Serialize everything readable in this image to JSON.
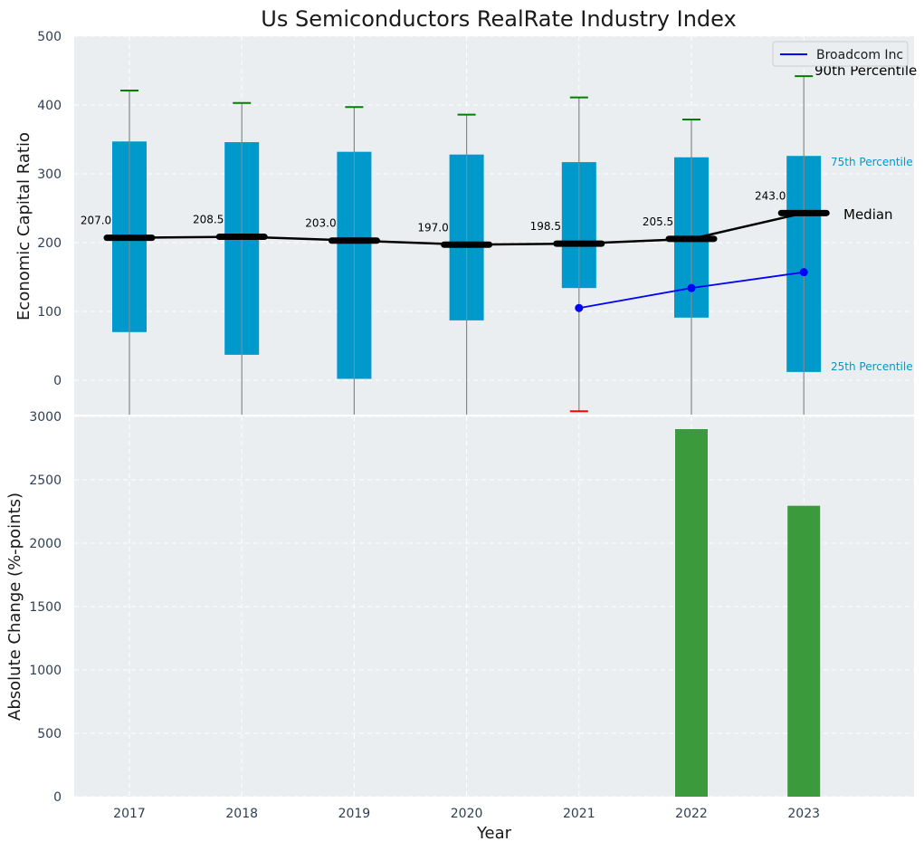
{
  "chart_data": {
    "title": "Us Semiconductors RealRate Industry Index",
    "xlabel": "Year",
    "categories": [
      "2017",
      "2018",
      "2019",
      "2020",
      "2021",
      "2022",
      "2023"
    ],
    "top": {
      "type": "box",
      "ylabel": "Economic Capital Ratio",
      "ylim": [
        -50,
        500
      ],
      "yticks": [
        0,
        100,
        200,
        300,
        400,
        500
      ],
      "grid": true,
      "p25": [
        70,
        37,
        2,
        87,
        134,
        91,
        12
      ],
      "p75": [
        347,
        346,
        332,
        328,
        317,
        324,
        326
      ],
      "p90": [
        421,
        403,
        397,
        386,
        411,
        379,
        442
      ],
      "whisker_low": [
        -50,
        -50,
        -50,
        -50,
        -45,
        -50,
        -50
      ],
      "low_cap_years": [
        "2021"
      ],
      "median": [
        207.0,
        208.5,
        203.0,
        197.0,
        198.5,
        205.5,
        243.0
      ],
      "median_labels": [
        "207.0",
        "208.5",
        "203.0",
        "197.0",
        "198.5",
        "205.5",
        "243.0"
      ],
      "annotations": {
        "p90": "90th Percentile",
        "median": "Median",
        "p75": "75th Percentile",
        "p25": "25th Percentile"
      },
      "series": [
        {
          "name": "Broadcom Inc",
          "x": [
            "2021",
            "2022",
            "2023"
          ],
          "values": [
            105,
            134,
            157
          ],
          "color": "#0000ff"
        }
      ],
      "legend_position": "top-right",
      "box_color": "#0099cc",
      "median_color": "#000000",
      "p90_cap_color": "#008000",
      "low_cap_color": "#ff0000"
    },
    "bottom": {
      "type": "bar",
      "ylabel": "Absolute Change (%-points)",
      "ylim": [
        0,
        3000
      ],
      "yticks": [
        0,
        500,
        1000,
        1500,
        2000,
        2500,
        3000
      ],
      "grid": true,
      "values": [
        null,
        null,
        null,
        null,
        null,
        2900,
        2295
      ],
      "bar_color": "#3a9a3c"
    }
  }
}
